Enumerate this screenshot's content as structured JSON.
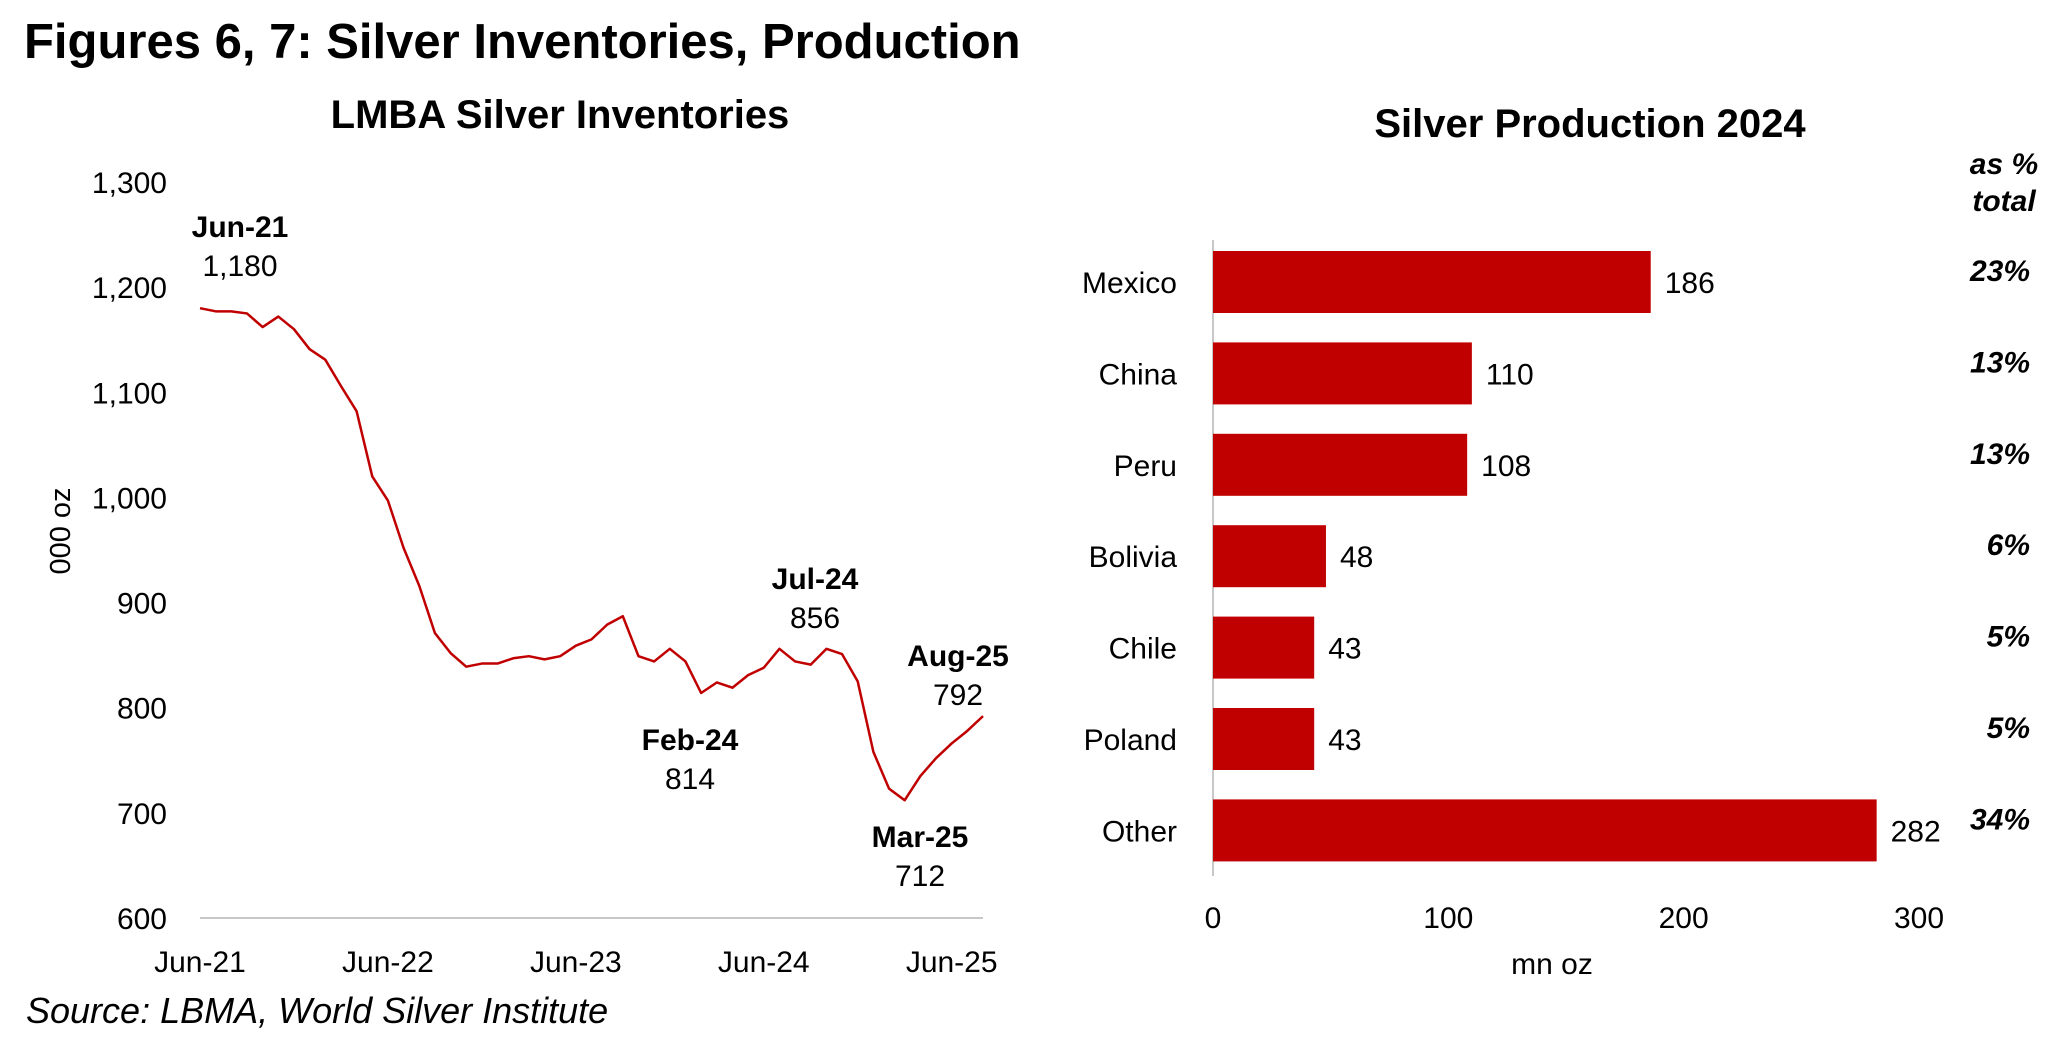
{
  "figure_title": "Figures 6, 7: Silver Inventories, Production",
  "source": "Source: LBMA, World Silver Institute",
  "chart_data": [
    {
      "type": "line",
      "title": "LMBA Silver Inventories",
      "xlabel": "",
      "ylabel": "000 oz",
      "ylim": [
        600,
        1300
      ],
      "yticks": [
        600,
        700,
        800,
        900,
        1000,
        1100,
        1200,
        1300
      ],
      "ytick_labels": [
        "600",
        "700",
        "800",
        "900",
        "1,000",
        "1,100",
        "1,200",
        "1,300"
      ],
      "xlim_months": [
        0,
        50
      ],
      "xticks": [
        {
          "m": 0,
          "label": "Jun-21"
        },
        {
          "m": 12,
          "label": "Jun-22"
        },
        {
          "m": 24,
          "label": "Jun-23"
        },
        {
          "m": 36,
          "label": "Jun-24"
        },
        {
          "m": 48,
          "label": "Jun-25"
        }
      ],
      "series": [
        {
          "name": "LBMA silver inventories",
          "color": "#c00000",
          "values": [
            1180,
            1177,
            1177,
            1175,
            1162,
            1172,
            1160,
            1141,
            1131,
            1106,
            1082,
            1020,
            997,
            952,
            916,
            871,
            852,
            839,
            842,
            842,
            847,
            849,
            846,
            849,
            859,
            865,
            879,
            887,
            849,
            844,
            856,
            844,
            814,
            824,
            819,
            831,
            838,
            856,
            844,
            841,
            856,
            851,
            825,
            758,
            723,
            712,
            735,
            752,
            766,
            778,
            792
          ]
        }
      ],
      "annotations": [
        {
          "label": "Jun-21",
          "value": "1,180",
          "m": 0
        },
        {
          "label": "Feb-24",
          "value": "814",
          "m": 32
        },
        {
          "label": "Jul-24",
          "value": "856",
          "m": 37
        },
        {
          "label": "Mar-25",
          "value": "712",
          "m": 45
        },
        {
          "label": "Aug-25",
          "value": "792",
          "m": 50
        }
      ]
    },
    {
      "type": "bar",
      "orientation": "horizontal",
      "title": "Silver Production 2024",
      "xlabel": "mn oz",
      "ylabel": "",
      "xlim": [
        0,
        300
      ],
      "xticks": [
        0,
        100,
        200,
        300
      ],
      "categories": [
        "Mexico",
        "China",
        "Peru",
        "Bolivia",
        "Chile",
        "Poland",
        "Other"
      ],
      "values": [
        186,
        110,
        108,
        48,
        43,
        43,
        282
      ],
      "share_header": "as %",
      "share_header_2": "total",
      "shares": [
        "23%",
        "13%",
        "13%",
        "6%",
        "5%",
        "5%",
        "34%"
      ],
      "color": "#c00000"
    }
  ]
}
